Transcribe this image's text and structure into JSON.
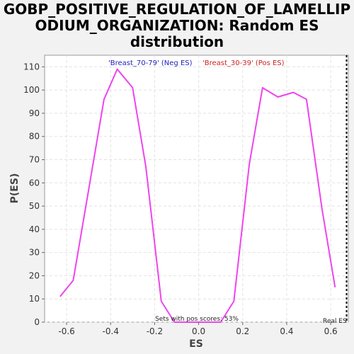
{
  "chart_data": {
    "type": "line",
    "title_lines": [
      "GOBP_POSITIVE_REGULATION_OF_LAMELLIP",
      "ODIUM_ORGANIZATION: Random ES",
      "distribution"
    ],
    "xlabel": "ES",
    "ylabel": "P(ES)",
    "xlim": [
      -0.7,
      0.68
    ],
    "ylim": [
      0,
      115
    ],
    "x_ticks": [
      -0.6,
      -0.4,
      -0.2,
      0.0,
      0.2,
      0.4,
      0.6
    ],
    "x_tick_labels": [
      "-0.6",
      "-0.4",
      "-0.2",
      "0.0",
      "0.2",
      "0.4",
      "0.6"
    ],
    "y_ticks": [
      0,
      10,
      20,
      30,
      40,
      50,
      60,
      70,
      80,
      90,
      100,
      110
    ],
    "y_tick_labels": [
      "0",
      "10",
      "20",
      "30",
      "40",
      "50",
      "60",
      "70",
      "80",
      "90",
      "100",
      "110"
    ],
    "grid": true,
    "series": [
      {
        "color": "#ee44ee",
        "x": [
          -0.63,
          -0.57,
          -0.5,
          -0.43,
          -0.37,
          -0.3,
          -0.24,
          -0.17,
          -0.11,
          -0.04,
          0.03,
          0.1,
          0.16,
          0.23,
          0.29,
          0.36,
          0.43,
          0.49,
          0.56,
          0.62
        ],
        "y": [
          11,
          18,
          57,
          96,
          109,
          101,
          67,
          9,
          0,
          0,
          0,
          0,
          9,
          68,
          101,
          97,
          99,
          96,
          49,
          15
        ]
      }
    ],
    "legend": {
      "placement": "top",
      "entries": [
        {
          "label": "'Breast_70-79' (Neg ES)",
          "color": "#2222bb"
        },
        {
          "label": "'Breast_30-39' (Pos ES)",
          "color": "#cc2222"
        }
      ]
    },
    "annotations": {
      "pos_scores": "Sets with pos scores: 53%",
      "real_es_label": "Real ES",
      "real_es_x": 0.672
    }
  }
}
